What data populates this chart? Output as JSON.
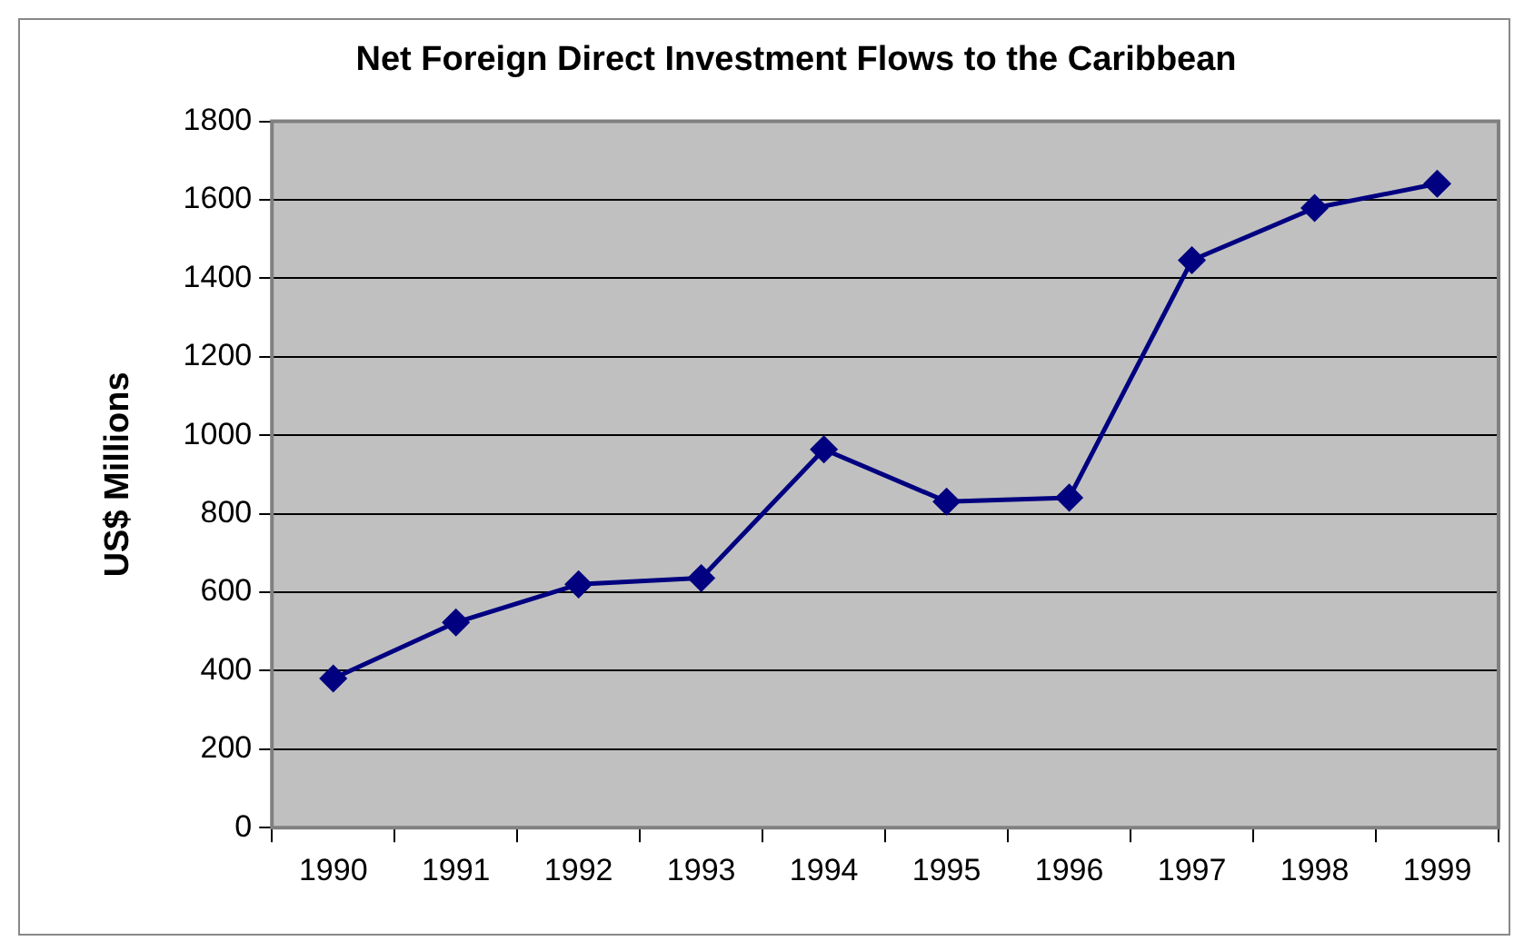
{
  "chart_data": {
    "type": "line",
    "title": "Net Foreign Direct Investment Flows to the Caribbean",
    "ylabel": "US$ Millions",
    "categories": [
      "1990",
      "1991",
      "1992",
      "1993",
      "1994",
      "1995",
      "1996",
      "1997",
      "1998",
      "1999"
    ],
    "series": [
      {
        "color": "#000080",
        "values": [
          380,
          523,
          620,
          636,
          964,
          831,
          841,
          1446,
          1579,
          1641
        ]
      }
    ],
    "ylim": [
      0,
      1800
    ],
    "yticks": [
      0,
      200,
      400,
      600,
      800,
      1000,
      1200,
      1400,
      1600,
      1800
    ],
    "grid": "y",
    "legend": false,
    "marker": "diamond",
    "line_style": "solid"
  }
}
